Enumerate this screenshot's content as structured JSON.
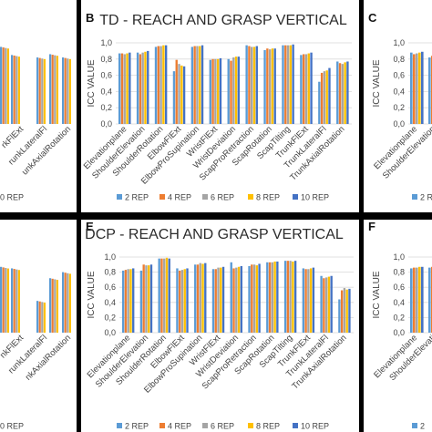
{
  "colors": {
    "s2": "#5b9bd5",
    "s4": "#ed7d31",
    "s6": "#a5a5a5",
    "s8": "#ffc000",
    "s10": "#4472c4"
  },
  "panels": [
    {
      "letter": "B",
      "title": "TD - REACH AND GRASP VERTICAL",
      "ylabel": "ICC VALUE"
    },
    {
      "letter": "C",
      "title": "",
      "ylabel": "ICC VALUE"
    },
    {
      "letter": "E",
      "title": "DCP - REACH AND GRASP VERTICAL",
      "ylabel": "ICC VALUE"
    },
    {
      "letter": "F",
      "title": "",
      "ylabel": "ICC VALUE"
    }
  ],
  "left_fragments": {
    "top_labels": [
      "rkFlExt",
      "runkLateralFl",
      "unkAxialRotation"
    ],
    "bottom_labels": [
      "nkFlExt",
      "runkLateralFl",
      "nkAxialRotation"
    ],
    "top_legend": "0 REP",
    "bottom_legend": "0 REP"
  },
  "chart_data": [
    {
      "type": "bar",
      "title": "TD - REACH AND GRASP VERTICAL",
      "ylabel": "ICC VALUE",
      "ylim": [
        0,
        1
      ],
      "yticks": [
        "0,0",
        "0,2",
        "0,4",
        "0,6",
        "0,8",
        "1,0"
      ],
      "legend_position": "bottom",
      "categories": [
        "Elevationplane",
        "ShoulderElevation",
        "ShoulderRotation",
        "ElbowFlExt",
        "ElbowProSupination",
        "WristFlExt",
        "WristDeviation",
        "ScapProRetraction",
        "ScapRotation",
        "ScapTilting",
        "TrunkFlExt",
        "TrunkLateralFl",
        "TrunkAxialRotation"
      ],
      "series": [
        {
          "name": "2 REP",
          "values": [
            0.87,
            0.88,
            0.95,
            0.65,
            0.95,
            0.79,
            0.8,
            0.97,
            0.91,
            0.97,
            0.85,
            0.52,
            0.77
          ]
        },
        {
          "name": "4 REP",
          "values": [
            0.87,
            0.86,
            0.96,
            0.79,
            0.96,
            0.8,
            0.78,
            0.96,
            0.93,
            0.97,
            0.86,
            0.63,
            0.75
          ]
        },
        {
          "name": "6 REP",
          "values": [
            0.86,
            0.88,
            0.96,
            0.74,
            0.96,
            0.8,
            0.82,
            0.95,
            0.92,
            0.97,
            0.86,
            0.65,
            0.74
          ]
        },
        {
          "name": "8 REP",
          "values": [
            0.87,
            0.89,
            0.97,
            0.72,
            0.96,
            0.8,
            0.83,
            0.95,
            0.93,
            0.97,
            0.87,
            0.66,
            0.76
          ]
        },
        {
          "name": "10 REP",
          "values": [
            0.88,
            0.9,
            0.97,
            0.71,
            0.97,
            0.81,
            0.83,
            0.96,
            0.93,
            0.98,
            0.88,
            0.69,
            0.77
          ]
        }
      ]
    },
    {
      "type": "bar",
      "title": "DCP - REACH AND GRASP VERTICAL",
      "ylabel": "ICC VALUE",
      "ylim": [
        0,
        1
      ],
      "yticks": [
        "0,0",
        "0,2",
        "0,4",
        "0,6",
        "0,8",
        "1,0"
      ],
      "legend_position": "bottom",
      "categories": [
        "Elevationplane",
        "ShoulderElevation",
        "ShoulderRotation",
        "ElbowFlExt",
        "ElbowProSupination",
        "WristFlExt",
        "WristDeviation",
        "ScapProRetraction",
        "ScapRotation",
        "ScapTilting",
        "TrunkFlExt",
        "TrunkLateralFl",
        "TrunkAxialRotation"
      ],
      "series": [
        {
          "name": "2 REP",
          "values": [
            0.82,
            0.82,
            0.98,
            0.85,
            0.9,
            0.84,
            0.93,
            0.88,
            0.93,
            0.95,
            0.85,
            0.75,
            0.44
          ]
        },
        {
          "name": "4 REP",
          "values": [
            0.83,
            0.9,
            0.98,
            0.82,
            0.9,
            0.84,
            0.85,
            0.9,
            0.93,
            0.95,
            0.84,
            0.72,
            0.56
          ]
        },
        {
          "name": "6 REP",
          "values": [
            0.84,
            0.89,
            0.98,
            0.83,
            0.92,
            0.86,
            0.86,
            0.9,
            0.93,
            0.95,
            0.84,
            0.73,
            0.59
          ]
        },
        {
          "name": "8 REP",
          "values": [
            0.84,
            0.89,
            0.99,
            0.84,
            0.91,
            0.86,
            0.87,
            0.89,
            0.94,
            0.94,
            0.85,
            0.74,
            0.57
          ]
        },
        {
          "name": "10 REP",
          "values": [
            0.85,
            0.9,
            0.98,
            0.85,
            0.92,
            0.87,
            0.88,
            0.91,
            0.94,
            0.95,
            0.86,
            0.75,
            0.58
          ]
        }
      ]
    },
    {
      "type": "bar",
      "title": "",
      "ylabel": "ICC VALUE",
      "ylim": [
        0,
        1
      ],
      "yticks": [
        "0,0",
        "0,2",
        "0,4",
        "0,6",
        "0,8",
        "1,0"
      ],
      "categories": [
        "Elevationplane",
        "ShoulderElevation"
      ],
      "legend": [
        "2 REP"
      ],
      "series": [
        {
          "name": "2 REP",
          "values": [
            0.88,
            0.82
          ]
        },
        {
          "name": "4 REP",
          "values": [
            0.86,
            0.84
          ]
        },
        {
          "name": "6 REP",
          "values": [
            0.87,
            0.85
          ]
        },
        {
          "name": "8 REP",
          "values": [
            0.88,
            0.86
          ]
        },
        {
          "name": "10 REP",
          "values": [
            0.89,
            0.87
          ]
        }
      ]
    },
    {
      "type": "bar",
      "title": "",
      "ylabel": "ICC VALUE",
      "ylim": [
        0,
        1
      ],
      "yticks": [
        "0,0",
        "0,2",
        "0,4",
        "0,6",
        "0,8",
        "1,0"
      ],
      "categories": [
        "Elevationplane",
        "ShoulderElevati"
      ],
      "legend": [
        "2"
      ],
      "series": [
        {
          "name": "2 REP",
          "values": [
            0.85,
            0.86
          ]
        },
        {
          "name": "4 REP",
          "values": [
            0.86,
            0.87
          ]
        },
        {
          "name": "6 REP",
          "values": [
            0.86,
            0.88
          ]
        },
        {
          "name": "8 REP",
          "values": [
            0.87,
            0.88
          ]
        },
        {
          "name": "10 REP",
          "values": [
            0.87,
            0.89
          ]
        }
      ]
    },
    {
      "type": "bar",
      "title": "",
      "categories": [
        "",
        "",
        "",
        "",
        ""
      ],
      "series": [
        {
          "name": "",
          "values": [
            0.95,
            0.85,
            0.82,
            0.86,
            0.82
          ]
        }
      ]
    },
    {
      "type": "bar",
      "title": "",
      "categories": [
        "",
        "",
        "",
        "",
        ""
      ],
      "series": [
        {
          "name": "",
          "values": [
            0.87,
            0.85,
            0.42,
            0.72,
            0.8
          ]
        }
      ]
    }
  ]
}
